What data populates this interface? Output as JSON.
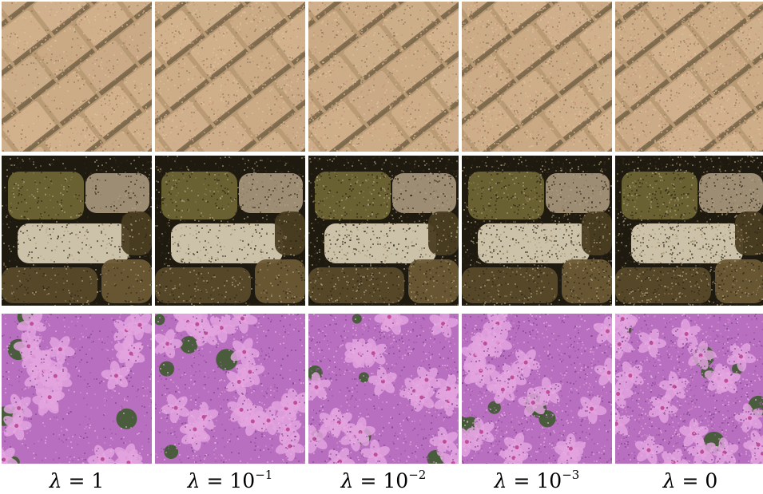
{
  "columns": [
    {
      "lambda": "λ",
      "eq": " = ",
      "base": "1",
      "exp": ""
    },
    {
      "lambda": "λ",
      "eq": " = ",
      "base": "10",
      "exp": "−1"
    },
    {
      "lambda": "λ",
      "eq": " = ",
      "base": "10",
      "exp": "−2"
    },
    {
      "lambda": "λ",
      "eq": " = ",
      "base": "10",
      "exp": "−3"
    },
    {
      "lambda": "λ",
      "eq": " = ",
      "base": "0",
      "exp": ""
    }
  ],
  "rows": [
    {
      "subject": "woven-wicker",
      "base_color": "#b89a74",
      "accent_color": "#6b5a3f",
      "highlight_color": "#d8b894"
    },
    {
      "subject": "stone-wall",
      "base_color": "#6b5a34",
      "accent_color": "#1f1a10",
      "highlight_color": "#d6cbb3"
    },
    {
      "subject": "pink-flowers",
      "base_color": "#b86fbf",
      "accent_color": "#3d5a2e",
      "highlight_color": "#e2a3de"
    }
  ]
}
